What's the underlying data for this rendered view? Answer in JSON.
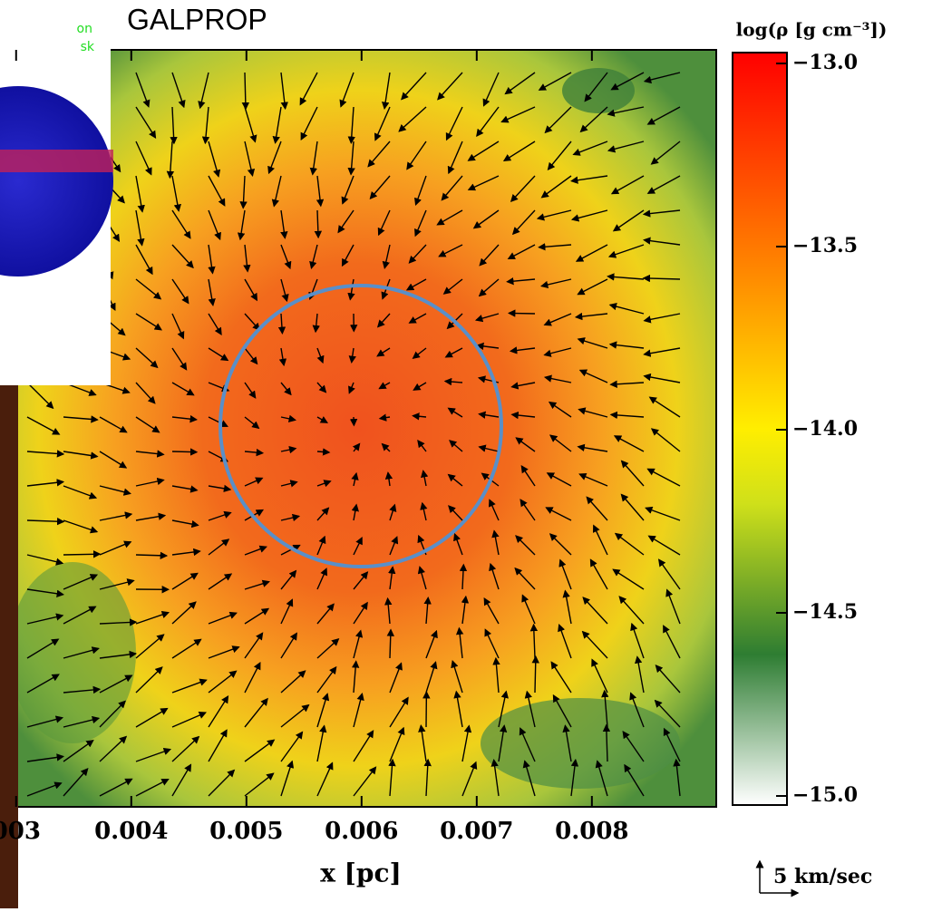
{
  "chart_data": {
    "type": "heatmap",
    "title": "GALPROP",
    "xlabel": "x [pc]",
    "xlim": [
      0.00286,
      0.00908
    ],
    "xticks": [
      {
        "value": 0.003,
        "label": "003"
      },
      0.004,
      0.005,
      0.006,
      0.007,
      0.008
    ],
    "colorbar_label": "log(ρ [g cm⁻³])",
    "clim": [
      -15,
      -13
    ],
    "cticks": [
      {
        "value": -13,
        "label": "−13.0"
      },
      {
        "value": -13.5,
        "label": "−13.5"
      },
      {
        "value": -14,
        "label": "−14.0"
      },
      {
        "value": -14.5,
        "label": "−14.5"
      },
      {
        "value": -15,
        "label": "−15.0"
      }
    ],
    "arrow_scale_label": "5 km/sec",
    "inset_texts": [
      "on",
      "sk"
    ]
  }
}
